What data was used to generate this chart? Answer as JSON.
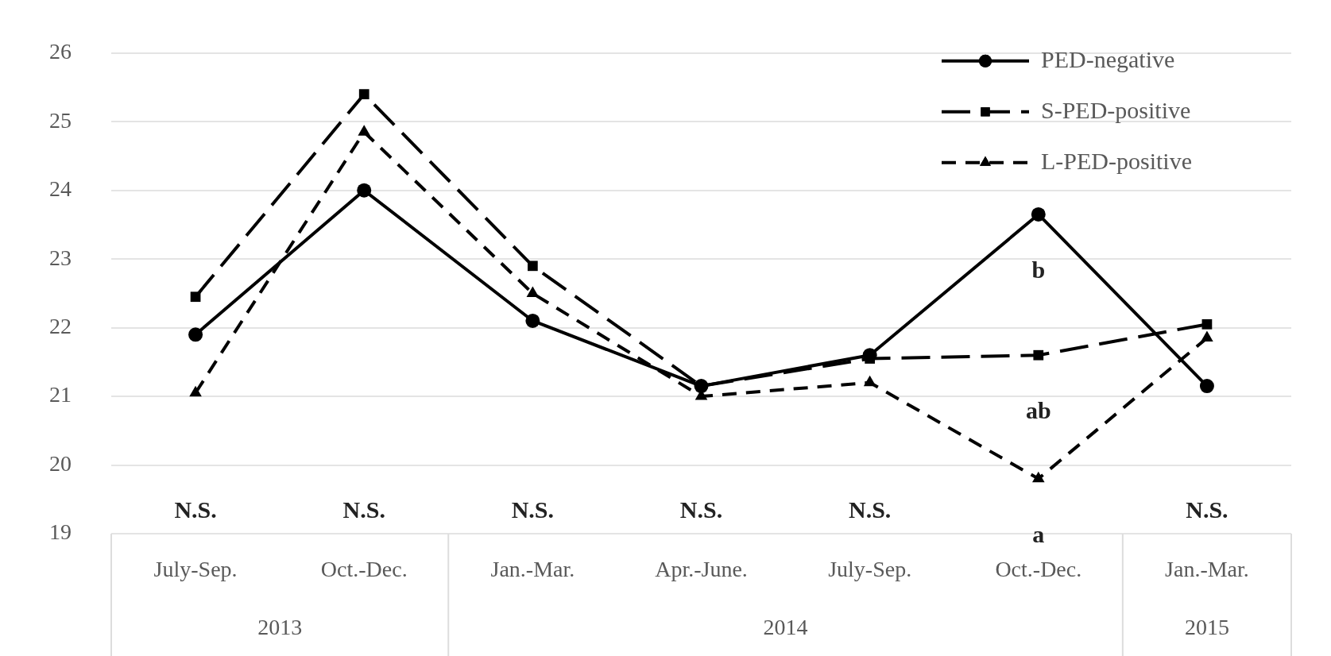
{
  "chart_data": {
    "type": "line",
    "categories": [
      "July-Sep.",
      "Oct.-Dec.",
      "Jan.-Mar.",
      "Apr.-June.",
      "July-Sep.",
      "Oct.-Dec.",
      "Jan.-Mar."
    ],
    "series": [
      {
        "name": "PED-negative",
        "color": "#000000",
        "marker": "circle",
        "line_style": "solid",
        "values": [
          21.9,
          24.0,
          22.1,
          21.15,
          21.6,
          23.65,
          21.15
        ],
        "value_labels": [
          null,
          null,
          null,
          null,
          null,
          "b",
          null
        ]
      },
      {
        "name": "S-PED-positive",
        "color": "#000000",
        "marker": "square",
        "line_style": "longdash",
        "values": [
          22.45,
          25.4,
          22.9,
          21.15,
          21.55,
          21.6,
          22.05
        ],
        "value_labels": [
          null,
          null,
          null,
          null,
          null,
          "ab",
          null
        ]
      },
      {
        "name": "L-PED-positive",
        "color": "#000000",
        "marker": "triangle",
        "line_style": "dashed",
        "values": [
          21.05,
          24.85,
          22.5,
          21.0,
          21.2,
          19.8,
          21.85
        ],
        "value_labels": [
          null,
          null,
          null,
          null,
          null,
          "a",
          null
        ]
      }
    ],
    "ylim": [
      19,
      26
    ],
    "yticks": [
      19,
      20,
      21,
      22,
      23,
      24,
      25,
      26
    ],
    "grid": "y",
    "legend": "top right",
    "annotations": [
      "N.S.",
      "N.S.",
      "N.S.",
      "N.S.",
      "N.S.",
      "N.S.",
      "2013",
      "2014",
      "2015"
    ]
  }
}
